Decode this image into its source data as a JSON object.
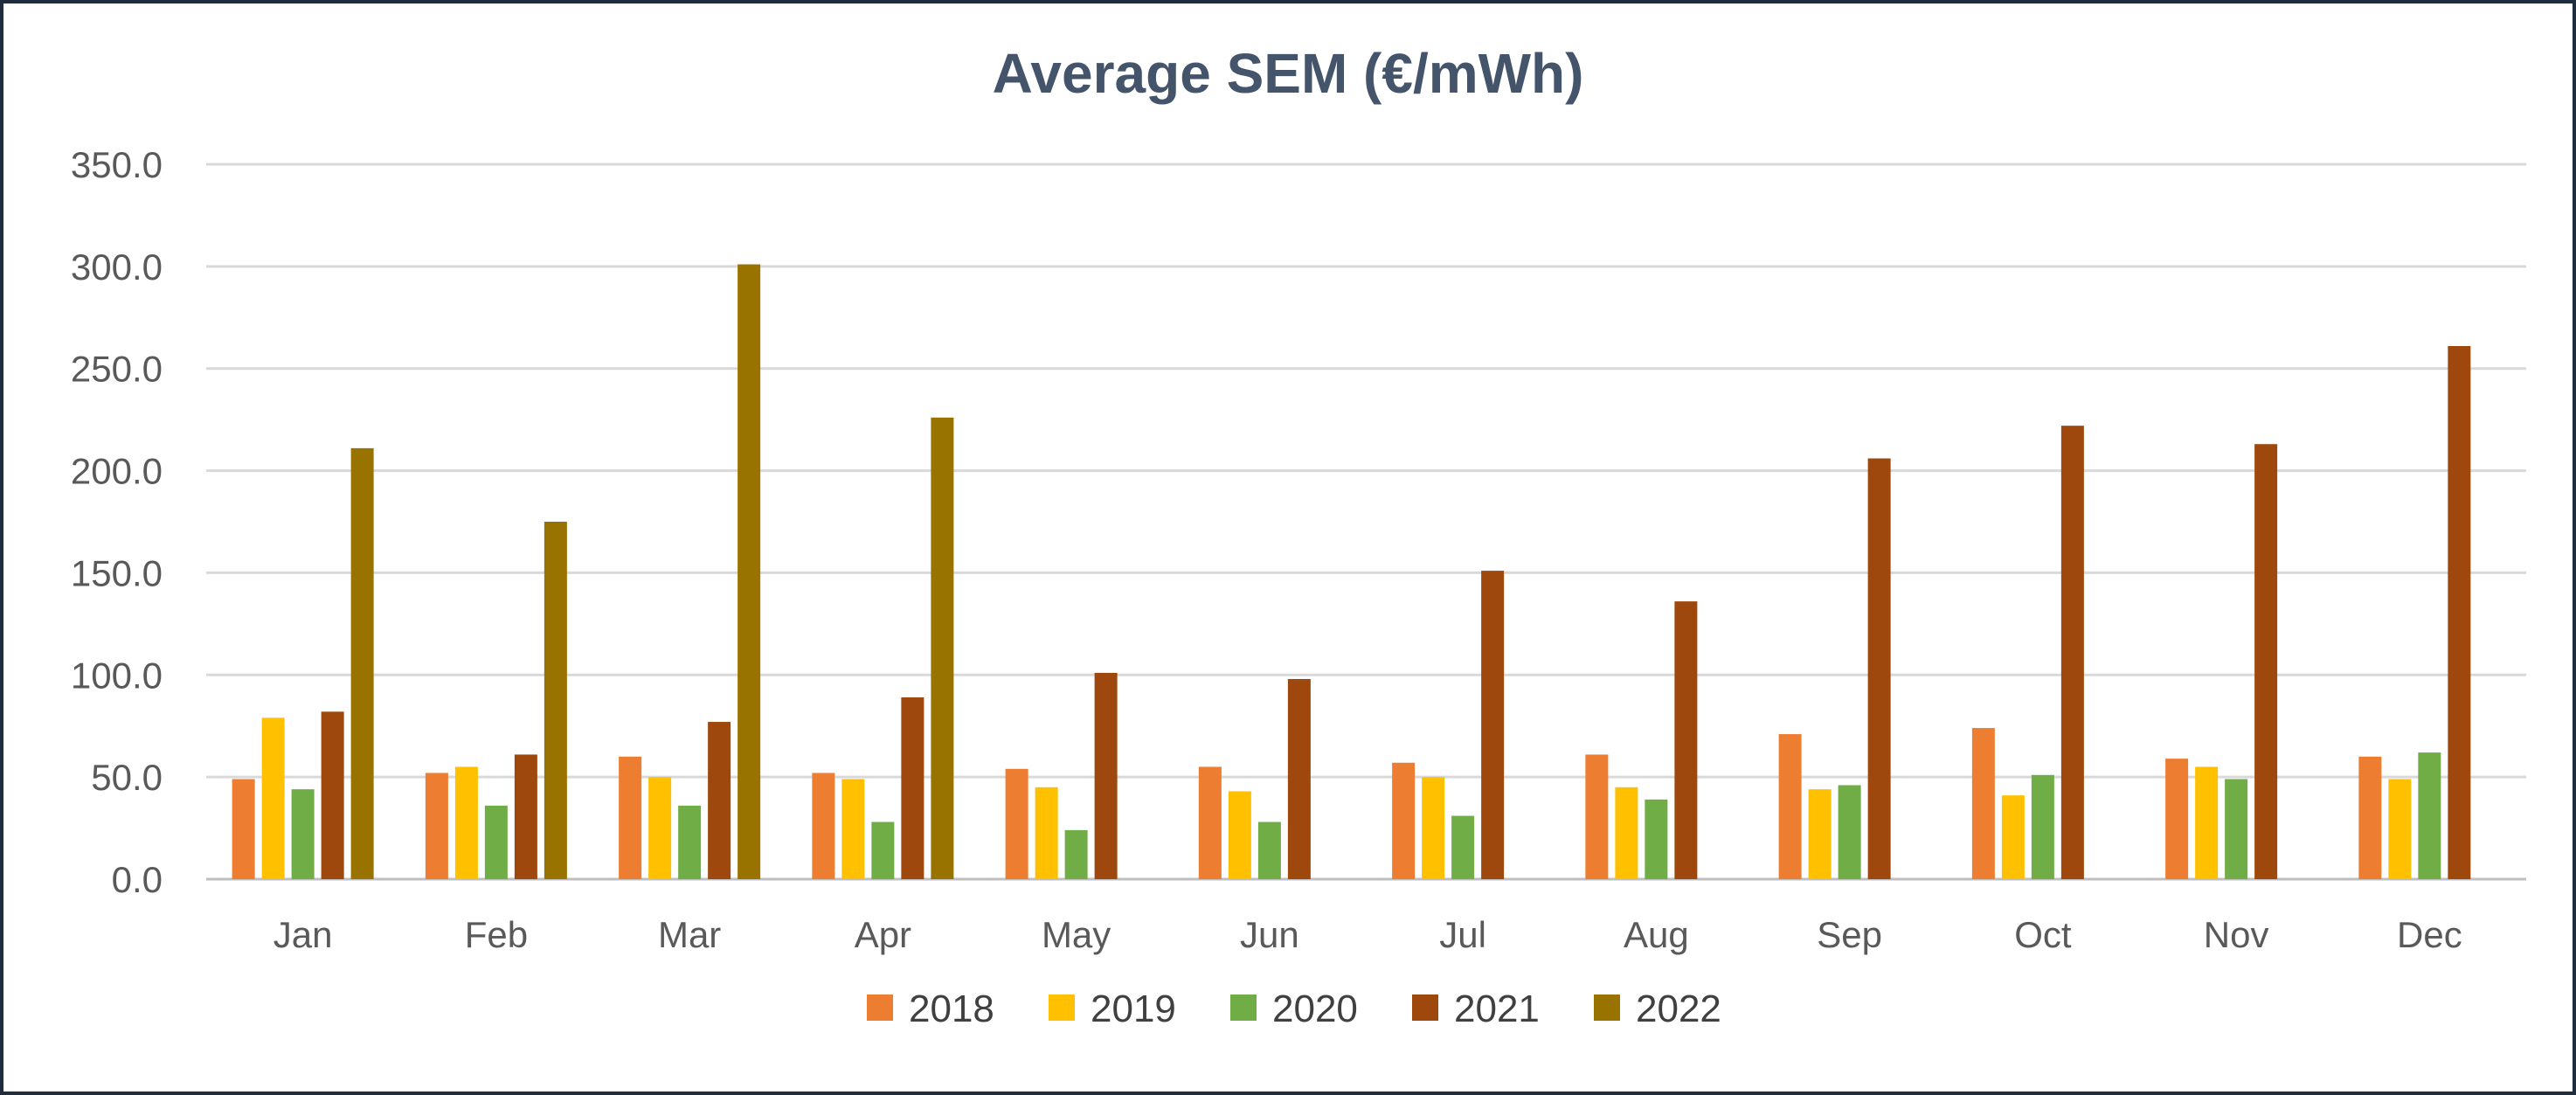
{
  "chart_data": {
    "type": "bar",
    "title": "Average SEM (€/mWh)",
    "xlabel": "",
    "ylabel": "",
    "ylim": [
      0,
      350
    ],
    "yticks": [
      "0.0",
      "50.0",
      "100.0",
      "150.0",
      "200.0",
      "250.0",
      "300.0",
      "350.0"
    ],
    "grid": true,
    "legend_position": "bottom",
    "categories": [
      "Jan",
      "Feb",
      "Mar",
      "Apr",
      "May",
      "Jun",
      "Jul",
      "Aug",
      "Sep",
      "Oct",
      "Nov",
      "Dec"
    ],
    "series": [
      {
        "name": "2018",
        "color": "#ed7d31",
        "values": [
          49,
          52,
          60,
          52,
          54,
          55,
          57,
          61,
          71,
          74,
          59,
          60
        ]
      },
      {
        "name": "2019",
        "color": "#ffc000",
        "values": [
          79,
          55,
          50,
          49,
          45,
          43,
          50,
          45,
          44,
          41,
          55,
          49
        ]
      },
      {
        "name": "2020",
        "color": "#70ad47",
        "values": [
          44,
          36,
          36,
          28,
          24,
          28,
          31,
          39,
          46,
          51,
          49,
          62
        ]
      },
      {
        "name": "2021",
        "color": "#9e480e",
        "values": [
          82,
          61,
          77,
          89,
          101,
          98,
          151,
          136,
          206,
          222,
          213,
          261
        ]
      },
      {
        "name": "2022",
        "color": "#997300",
        "values": [
          211,
          175,
          301,
          226,
          null,
          null,
          null,
          null,
          null,
          null,
          null,
          null
        ]
      }
    ]
  }
}
